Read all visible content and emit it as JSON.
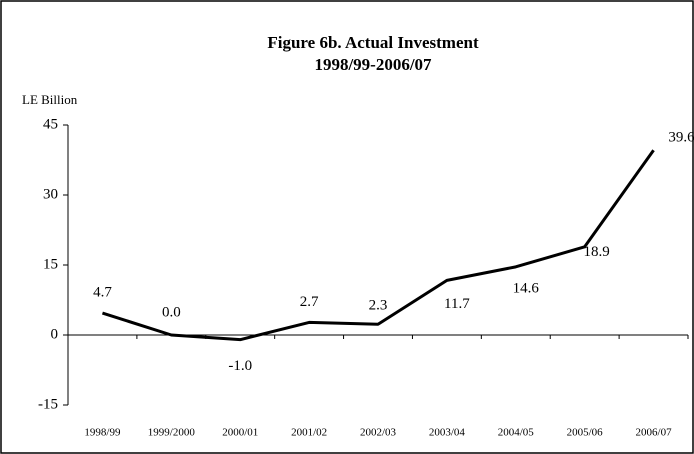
{
  "chart_data": {
    "type": "line",
    "title": "Figure 6b. Actual Investment",
    "subtitle": "1998/99-2006/07",
    "y_label": "LE Billion",
    "categories": [
      "1998/99",
      "1999/2000",
      "2000/01",
      "2001/02",
      "2002/03",
      "2003/04",
      "2004/05",
      "2005/06",
      "2006/07"
    ],
    "series": [
      {
        "name": "Actual Investment",
        "color": "#000000",
        "values": [
          4.7,
          0.0,
          -1.0,
          2.7,
          2.3,
          11.7,
          14.6,
          18.9,
          39.6
        ],
        "value_labels": [
          "4.7",
          "0.0",
          "-1.0",
          "2.7",
          "2.3",
          "11.7",
          "14.6",
          "18.9",
          "39.6"
        ]
      }
    ],
    "ylim": [
      -15,
      45
    ],
    "yticks": [
      -15,
      0,
      15,
      30,
      45
    ],
    "grid": false
  }
}
